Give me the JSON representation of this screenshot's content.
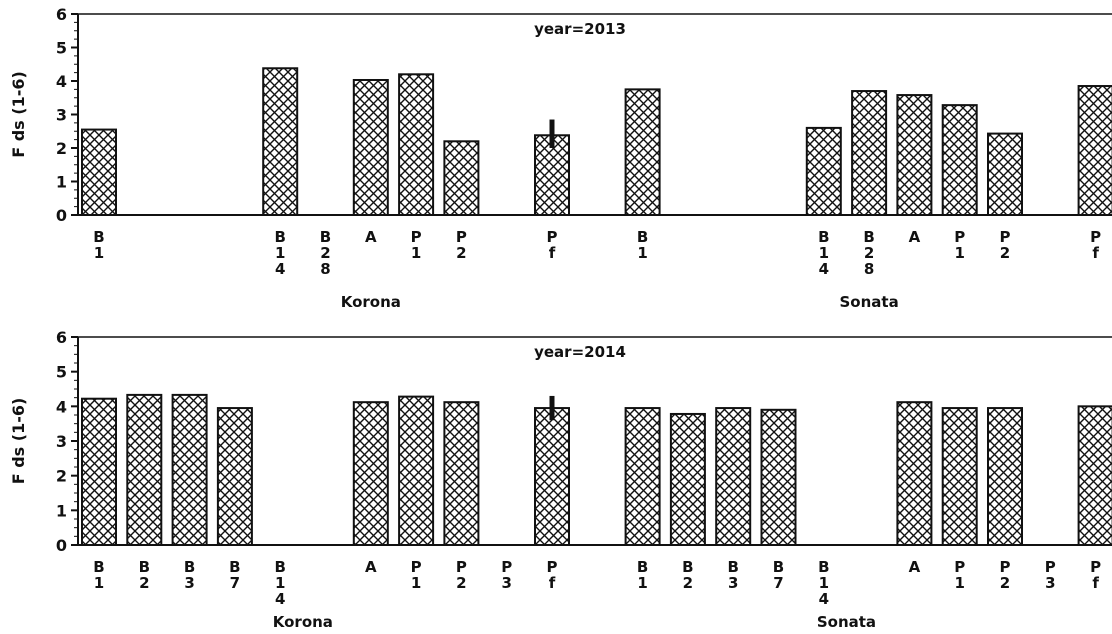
{
  "chart_data": [
    {
      "type": "bar",
      "title": "year=2013",
      "ylabel": "F ds (1-6)",
      "ylim": [
        0,
        6
      ],
      "yticks": [
        "0",
        "1",
        "2",
        "3",
        "4",
        "5",
        "6"
      ],
      "groups": [
        "Korona",
        "Sonata"
      ],
      "categories": [
        {
          "group": "Korona",
          "lines": [
            "B",
            "1"
          ],
          "value": 2.55
        },
        {
          "group": "Korona",
          "lines": [
            "B",
            "1",
            "4"
          ],
          "value": 4.38
        },
        {
          "group": "Korona",
          "lines": [
            "B",
            "2",
            "8"
          ],
          "value": null
        },
        {
          "group": "Korona",
          "lines": [
            "A"
          ],
          "value": 4.03
        },
        {
          "group": "Korona",
          "lines": [
            "P",
            "1"
          ],
          "value": 4.2
        },
        {
          "group": "Korona",
          "lines": [
            "P",
            "2"
          ],
          "value": 2.2
        },
        {
          "group": "Korona",
          "lines": [
            "P",
            "f"
          ],
          "value": 2.38,
          "error": [
            2.0,
            2.85
          ]
        },
        {
          "group": "Sonata",
          "lines": [
            "B",
            "1"
          ],
          "value": 3.75
        },
        {
          "group": "Sonata",
          "lines": [
            "B",
            "1",
            "4"
          ],
          "value": 2.6
        },
        {
          "group": "Sonata",
          "lines": [
            "B",
            "2",
            "8"
          ],
          "value": 3.7
        },
        {
          "group": "Sonata",
          "lines": [
            "A"
          ],
          "value": 3.58
        },
        {
          "group": "Sonata",
          "lines": [
            "P",
            "1"
          ],
          "value": 3.28
        },
        {
          "group": "Sonata",
          "lines": [
            "P",
            "2"
          ],
          "value": 2.43
        },
        {
          "group": "Sonata",
          "lines": [
            "P",
            "f"
          ],
          "value": 3.85
        }
      ]
    },
    {
      "type": "bar",
      "title": "year=2014",
      "ylabel": "F ds (1-6)",
      "ylim": [
        0,
        6
      ],
      "yticks": [
        "0",
        "1",
        "2",
        "3",
        "4",
        "5",
        "6"
      ],
      "groups": [
        "Korona",
        "Sonata"
      ],
      "categories": [
        {
          "group": "Korona",
          "lines": [
            "B",
            "1"
          ],
          "value": 4.22
        },
        {
          "group": "Korona",
          "lines": [
            "B",
            "2"
          ],
          "value": 4.33
        },
        {
          "group": "Korona",
          "lines": [
            "B",
            "3"
          ],
          "value": 4.33
        },
        {
          "group": "Korona",
          "lines": [
            "B",
            "7"
          ],
          "value": 3.95
        },
        {
          "group": "Korona",
          "lines": [
            "B",
            "1",
            "4"
          ],
          "value": null
        },
        {
          "group": "Korona",
          "lines": [
            "A"
          ],
          "value": 4.12
        },
        {
          "group": "Korona",
          "lines": [
            "P",
            "1"
          ],
          "value": 4.28
        },
        {
          "group": "Korona",
          "lines": [
            "P",
            "2"
          ],
          "value": 4.12
        },
        {
          "group": "Korona",
          "lines": [
            "P",
            "3"
          ],
          "value": null
        },
        {
          "group": "Korona",
          "lines": [
            "P",
            "f"
          ],
          "value": 3.95,
          "error": [
            3.6,
            4.3
          ]
        },
        {
          "group": "Sonata",
          "lines": [
            "B",
            "1"
          ],
          "value": 3.95
        },
        {
          "group": "Sonata",
          "lines": [
            "B",
            "2"
          ],
          "value": 3.78
        },
        {
          "group": "Sonata",
          "lines": [
            "B",
            "3"
          ],
          "value": 3.95
        },
        {
          "group": "Sonata",
          "lines": [
            "B",
            "7"
          ],
          "value": 3.9
        },
        {
          "group": "Sonata",
          "lines": [
            "B",
            "1",
            "4"
          ],
          "value": null
        },
        {
          "group": "Sonata",
          "lines": [
            "A"
          ],
          "value": 4.12
        },
        {
          "group": "Sonata",
          "lines": [
            "P",
            "1"
          ],
          "value": 3.95
        },
        {
          "group": "Sonata",
          "lines": [
            "P",
            "2"
          ],
          "value": 3.95
        },
        {
          "group": "Sonata",
          "lines": [
            "P",
            "3"
          ],
          "value": null
        },
        {
          "group": "Sonata",
          "lines": [
            "P",
            "f"
          ],
          "value": 4.0
        }
      ]
    }
  ],
  "colors": {
    "bar_fill_pattern": "#111111",
    "bar_background": "#ffffff",
    "axis": "#111111"
  }
}
